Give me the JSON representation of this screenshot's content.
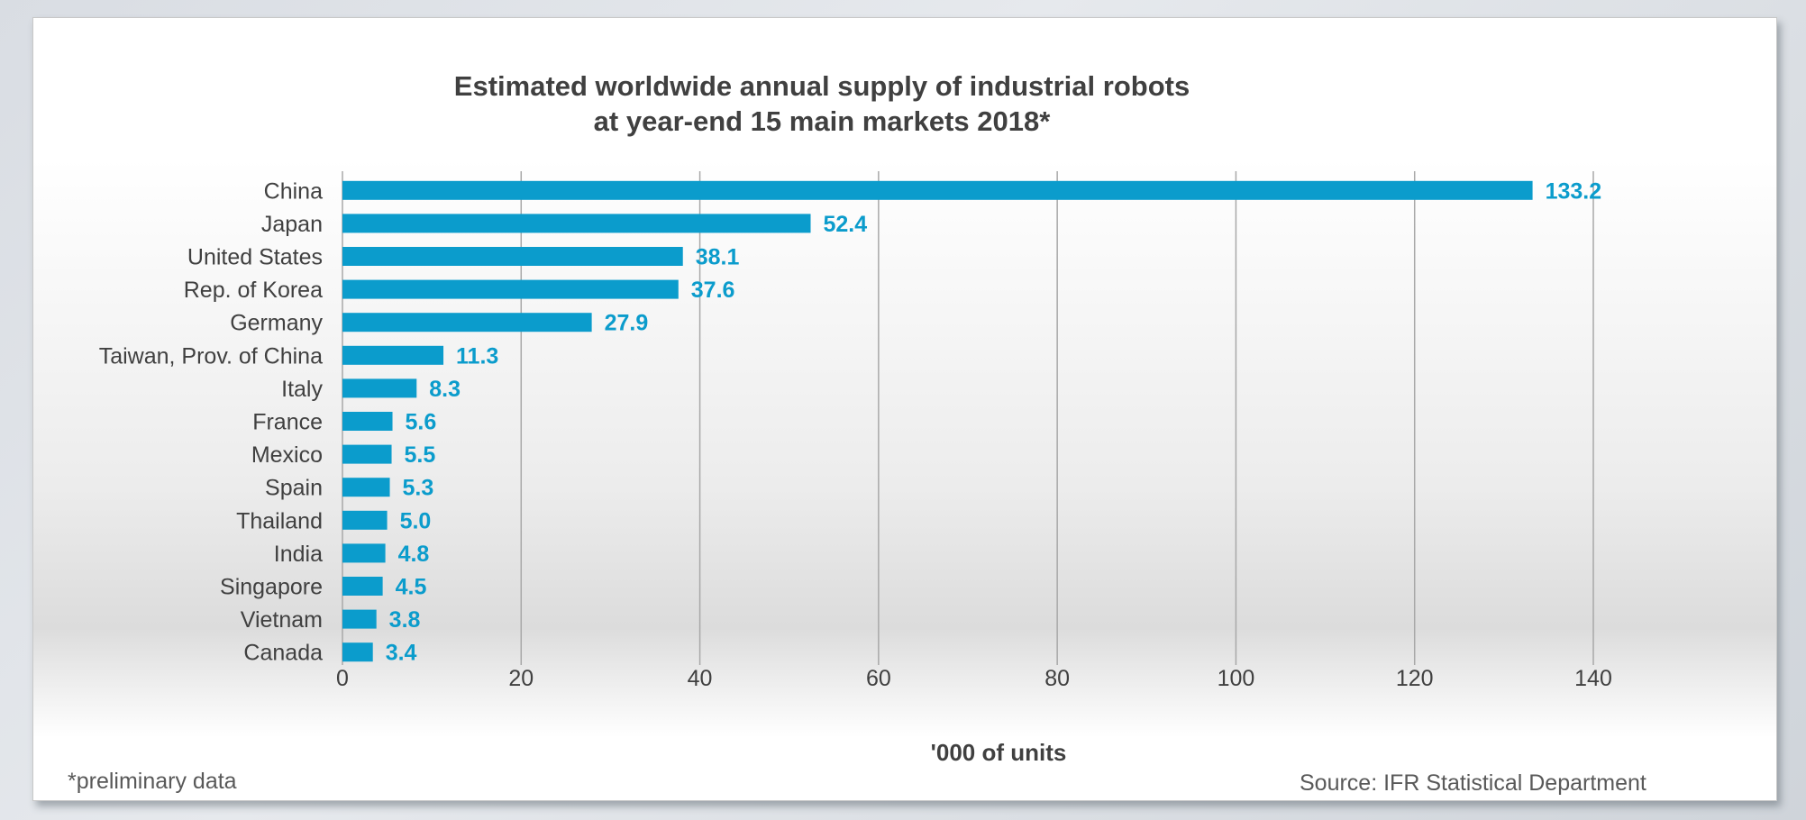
{
  "footnote": "*preliminary data",
  "source": "Source: IFR Statistical Department",
  "colors": {
    "bar": "#0b9ccc",
    "label": "#0b9ccc",
    "grid": "#a8a8a8",
    "text": "#404040"
  },
  "chart_data": {
    "type": "bar",
    "orientation": "horizontal",
    "title": [
      "Estimated worldwide annual supply of industrial robots",
      "at year-end 15 main markets 2018*"
    ],
    "xlabel": "'000 of units",
    "ylabel": "",
    "xlim": [
      0,
      140
    ],
    "xticks": [
      0,
      20,
      40,
      60,
      80,
      100,
      120,
      140
    ],
    "grid": true,
    "categories": [
      "China",
      "Japan",
      "United States",
      "Rep. of Korea",
      "Germany",
      "Taiwan, Prov. of China",
      "Italy",
      "France",
      "Mexico",
      "Spain",
      "Thailand",
      "India",
      "Singapore",
      "Vietnam",
      "Canada"
    ],
    "values": [
      133.2,
      52.4,
      38.1,
      37.6,
      27.9,
      11.3,
      8.3,
      5.6,
      5.5,
      5.3,
      5.0,
      4.8,
      4.5,
      3.8,
      3.4
    ],
    "value_labels": [
      "133.2",
      "52.4",
      "38.1",
      "37.6",
      "27.9",
      "11.3",
      "8.3",
      "5.6",
      "5.5",
      "5.3",
      "5.0",
      "4.8",
      "4.5",
      "3.8",
      "3.4"
    ]
  }
}
